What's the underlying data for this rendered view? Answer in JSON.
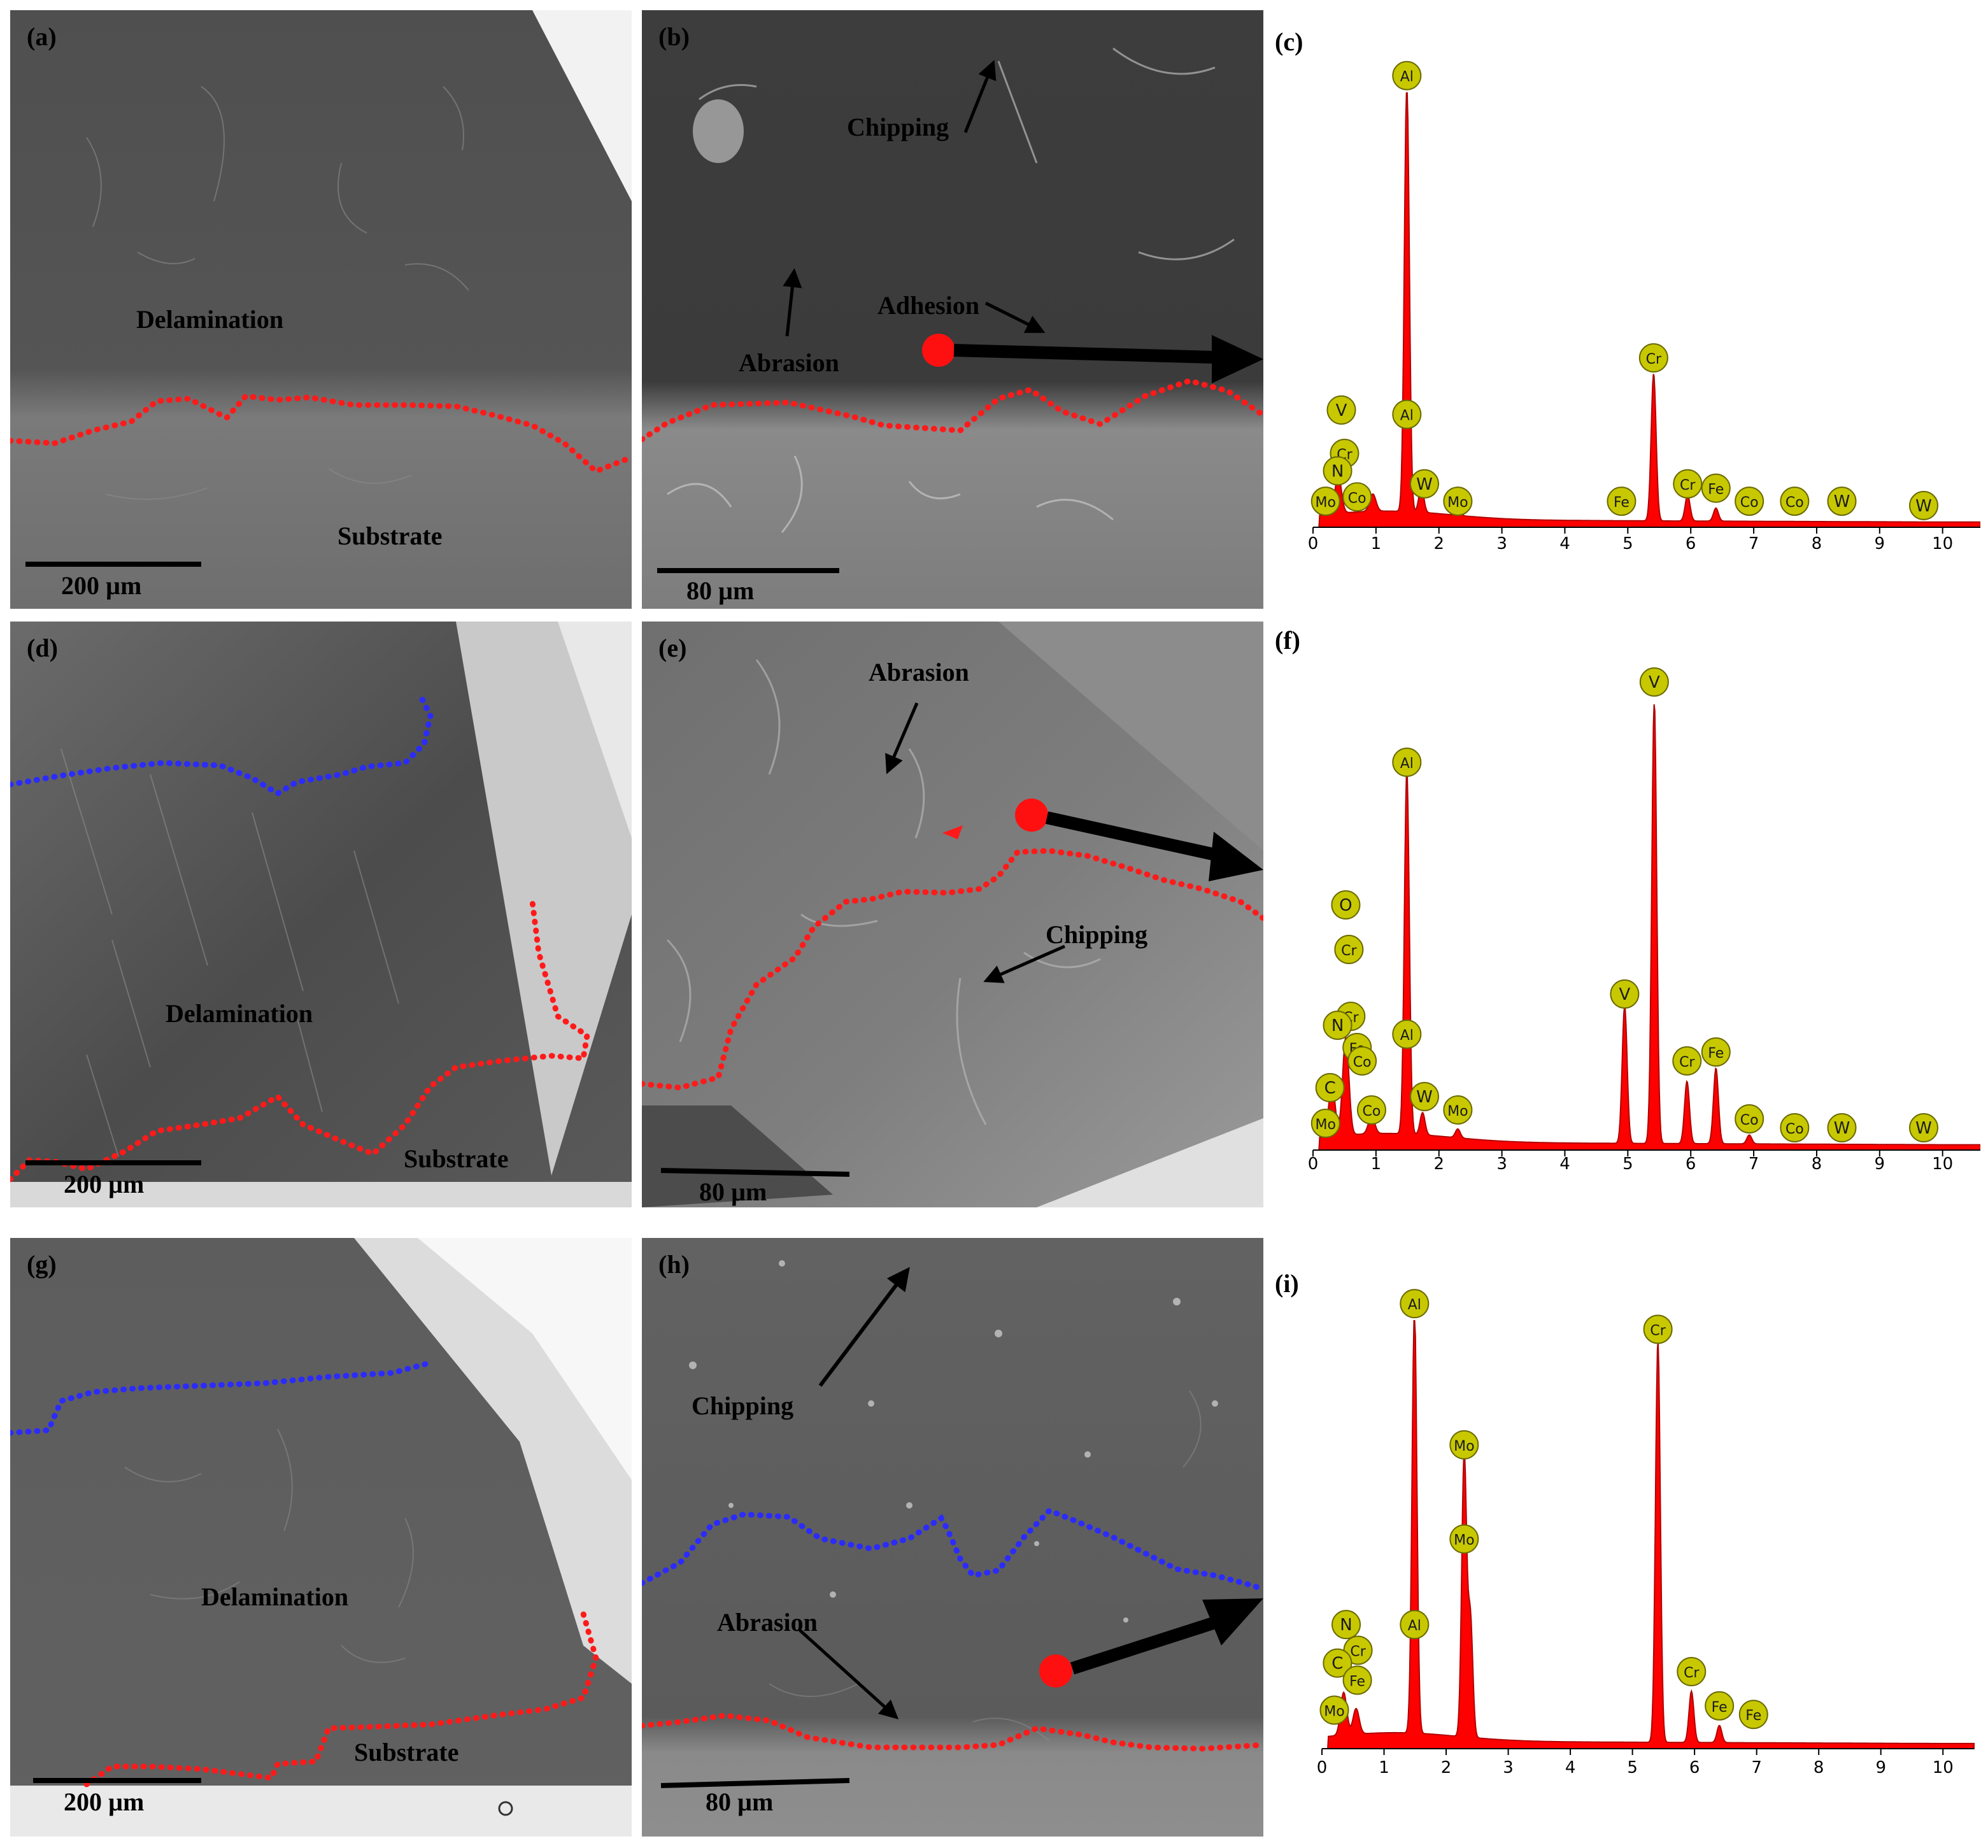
{
  "figure": {
    "panels_sem": [
      {
        "label": "(a)",
        "scale": "200 µm",
        "annotations": [
          "Delamination",
          "Substrate"
        ]
      },
      {
        "label": "(b)",
        "scale": "80 µm",
        "annotations": [
          "Chipping",
          "Adhesion",
          "Abrasion"
        ]
      },
      {
        "label": "(d)",
        "scale": "200 µm",
        "annotations": [
          "Delamination",
          "Substrate"
        ]
      },
      {
        "label": "(e)",
        "scale": "80 µm",
        "annotations": [
          "Abrasion",
          "Chipping"
        ]
      },
      {
        "label": "(g)",
        "scale": "200 µm",
        "annotations": [
          "Delamination",
          "Substrate"
        ]
      },
      {
        "label": "(h)",
        "scale": "80 µm",
        "annotations": [
          "Chipping",
          "Abrasion"
        ]
      }
    ],
    "colors": {
      "boundary_red": "#ff1a1a",
      "boundary_blue": "#2b2bff",
      "spectrum_fill": "#ff0000",
      "marker_fill": "#c8c800",
      "marker_stroke": "#6a6a00"
    }
  },
  "chart_data": [
    {
      "type": "area",
      "label": "(c)",
      "x_ticks": [
        "0",
        "1",
        "2",
        "3",
        "4",
        "5",
        "6",
        "7",
        "8",
        "9",
        "10"
      ],
      "xlim": [
        0,
        10.6
      ],
      "peaks": [
        {
          "x": 0.4,
          "h": 0.09
        },
        {
          "x": 0.95,
          "h": 0.04
        },
        {
          "x": 1.49,
          "h": 1.0
        },
        {
          "x": 1.72,
          "h": 0.06
        },
        {
          "x": 2.3,
          "h": 0.02
        },
        {
          "x": 5.41,
          "h": 0.34
        },
        {
          "x": 5.95,
          "h": 0.06
        },
        {
          "x": 6.4,
          "h": 0.03
        }
      ],
      "element_labels": [
        {
          "text": "Al",
          "x": 1.49,
          "level": 1.04
        },
        {
          "text": "Al",
          "x": 1.49,
          "level": 0.26
        },
        {
          "text": "Cr",
          "x": 5.41,
          "level": 0.39
        },
        {
          "text": "V",
          "x": 0.45,
          "level": 0.27
        },
        {
          "text": "Cr",
          "x": 0.5,
          "level": 0.17
        },
        {
          "text": "N",
          "x": 0.39,
          "level": 0.13
        },
        {
          "text": "Co",
          "x": 0.7,
          "level": 0.07
        },
        {
          "text": "Mo",
          "x": 0.2,
          "level": 0.06
        },
        {
          "text": "W",
          "x": 1.77,
          "level": 0.1
        },
        {
          "text": "Mo",
          "x": 2.3,
          "level": 0.06
        },
        {
          "text": "Fe",
          "x": 4.9,
          "level": 0.06
        },
        {
          "text": "Cr",
          "x": 5.95,
          "level": 0.1
        },
        {
          "text": "Fe",
          "x": 6.4,
          "level": 0.09
        },
        {
          "text": "Co",
          "x": 6.93,
          "level": 0.06
        },
        {
          "text": "Co",
          "x": 7.65,
          "level": 0.06
        },
        {
          "text": "W",
          "x": 8.4,
          "level": 0.06
        },
        {
          "text": "W",
          "x": 9.7,
          "level": 0.05
        }
      ]
    },
    {
      "type": "area",
      "label": "(f)",
      "x_ticks": [
        "0",
        "1",
        "2",
        "3",
        "4",
        "5",
        "6",
        "7",
        "8",
        "9",
        "10"
      ],
      "xlim": [
        0,
        10.6
      ],
      "peaks": [
        {
          "x": 0.3,
          "h": 0.12
        },
        {
          "x": 0.52,
          "h": 0.22
        },
        {
          "x": 0.93,
          "h": 0.04
        },
        {
          "x": 1.49,
          "h": 0.82
        },
        {
          "x": 1.74,
          "h": 0.05
        },
        {
          "x": 2.3,
          "h": 0.02
        },
        {
          "x": 4.95,
          "h": 0.31
        },
        {
          "x": 5.42,
          "h": 1.0
        },
        {
          "x": 5.94,
          "h": 0.14
        },
        {
          "x": 6.4,
          "h": 0.17
        },
        {
          "x": 6.93,
          "h": 0.02
        }
      ],
      "element_labels": [
        {
          "text": "V",
          "x": 5.42,
          "level": 1.05
        },
        {
          "text": "Al",
          "x": 1.49,
          "level": 0.87
        },
        {
          "text": "O",
          "x": 0.52,
          "level": 0.55
        },
        {
          "text": "Cr",
          "x": 0.57,
          "level": 0.45
        },
        {
          "text": "Cr",
          "x": 0.6,
          "level": 0.3
        },
        {
          "text": "N",
          "x": 0.39,
          "level": 0.28
        },
        {
          "text": "Fe",
          "x": 0.7,
          "level": 0.23
        },
        {
          "text": "Co",
          "x": 0.78,
          "level": 0.2
        },
        {
          "text": "C",
          "x": 0.27,
          "level": 0.14
        },
        {
          "text": "Mo",
          "x": 0.2,
          "level": 0.06
        },
        {
          "text": "Co",
          "x": 0.93,
          "level": 0.09
        },
        {
          "text": "Al",
          "x": 1.49,
          "level": 0.26
        },
        {
          "text": "W",
          "x": 1.77,
          "level": 0.12
        },
        {
          "text": "Mo",
          "x": 2.3,
          "level": 0.09
        },
        {
          "text": "V",
          "x": 4.95,
          "level": 0.35
        },
        {
          "text": "Cr",
          "x": 5.94,
          "level": 0.2
        },
        {
          "text": "Fe",
          "x": 6.4,
          "level": 0.22
        },
        {
          "text": "Co",
          "x": 6.93,
          "level": 0.07
        },
        {
          "text": "Co",
          "x": 7.65,
          "level": 0.05
        },
        {
          "text": "W",
          "x": 8.4,
          "level": 0.05
        },
        {
          "text": "W",
          "x": 9.7,
          "level": 0.05
        }
      ]
    },
    {
      "type": "area",
      "label": "(i)",
      "x_ticks": [
        "0",
        "1",
        "2",
        "3",
        "4",
        "5",
        "6",
        "7",
        "8",
        "9",
        "10"
      ],
      "xlim": [
        0,
        10.5
      ],
      "peaks": [
        {
          "x": 0.35,
          "h": 0.1
        },
        {
          "x": 0.55,
          "h": 0.06
        },
        {
          "x": 1.49,
          "h": 1.0
        },
        {
          "x": 2.29,
          "h": 0.66
        },
        {
          "x": 2.39,
          "h": 0.28
        },
        {
          "x": 5.41,
          "h": 0.94
        },
        {
          "x": 5.95,
          "h": 0.12
        },
        {
          "x": 6.4,
          "h": 0.04
        }
      ],
      "element_labels": [
        {
          "text": "Al",
          "x": 1.49,
          "level": 1.04
        },
        {
          "text": "Mo",
          "x": 2.29,
          "level": 0.71
        },
        {
          "text": "Mo",
          "x": 2.29,
          "level": 0.49
        },
        {
          "text": "Cr",
          "x": 5.41,
          "level": 0.98
        },
        {
          "text": "Al",
          "x": 1.49,
          "level": 0.29
        },
        {
          "text": "N",
          "x": 0.39,
          "level": 0.29
        },
        {
          "text": "Cr",
          "x": 0.58,
          "level": 0.23
        },
        {
          "text": "C",
          "x": 0.25,
          "level": 0.2
        },
        {
          "text": "Fe",
          "x": 0.57,
          "level": 0.16
        },
        {
          "text": "Mo",
          "x": 0.2,
          "level": 0.09
        },
        {
          "text": "Cr",
          "x": 5.95,
          "level": 0.18
        },
        {
          "text": "Fe",
          "x": 6.4,
          "level": 0.1
        },
        {
          "text": "Fe",
          "x": 6.95,
          "level": 0.08
        }
      ]
    }
  ]
}
